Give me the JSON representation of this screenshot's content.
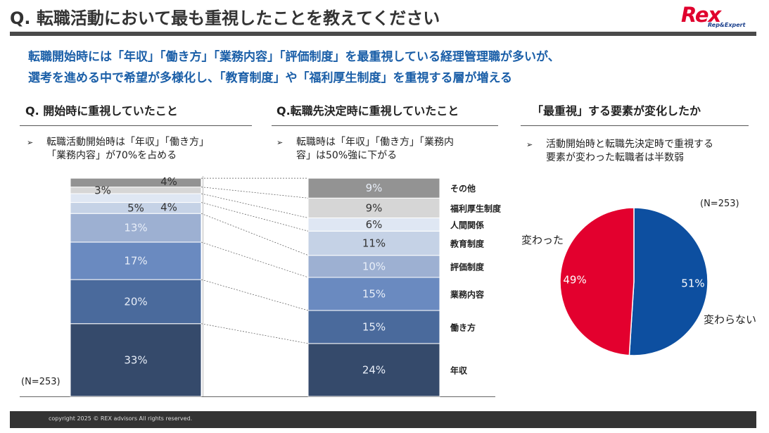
{
  "header": {
    "title": "Q. 転職活動において最も重視したことを教えてください",
    "logo_main": "Rex",
    "logo_sub": "Rep&Expert"
  },
  "headline": {
    "line1": "転職開始時には「年収」「働き方」「業務内容」「評価制度」を最重視している経理管理職が多いが、",
    "line2": "選考を進める中で希望が多様化し、「教育制度」や「福利厚生制度」を重視する層が増える"
  },
  "sections": {
    "start": {
      "title": "Q. 開始時に重視していたこと",
      "bullet_line1": "転職活動開始時は「年収」「働き方」",
      "bullet_line2": "「業務内容」が70%を占める",
      "n_label": "(N=253)"
    },
    "decision": {
      "title": "Q.転職先決定時に重視していたこと",
      "bullet_line1": "転職時は「年収」「働き方」「業務内",
      "bullet_line2": "容」は50%強に下がる"
    },
    "change": {
      "title": "「最重視」する要素が変化したか",
      "bullet_line1": "活動開始時と転職先決定時で重視する",
      "bullet_line2": "要素が変わった転職者は半数弱",
      "n_label": "(N=253)"
    }
  },
  "bullet_symbol": "➢",
  "chart_data": [
    {
      "type": "bar",
      "stacked": true,
      "title": "Q. 開始時に重視していたこと / Q.転職先決定時に重視していたこと",
      "categories": [
        "開始時",
        "転職先決定時"
      ],
      "unit": "%",
      "ylim": [
        0,
        100
      ],
      "series": [
        {
          "name": "年収",
          "values": [
            33,
            24
          ],
          "labels": [
            "33%",
            "24%"
          ],
          "color": "#354a6b"
        },
        {
          "name": "働き方",
          "values": [
            20,
            15
          ],
          "labels": [
            "20%",
            "15%"
          ],
          "color": "#4a6a9c"
        },
        {
          "name": "業務内容",
          "values": [
            17,
            15
          ],
          "labels": [
            "17%",
            "15%"
          ],
          "color": "#6a8ac0"
        },
        {
          "name": "評価制度",
          "values": [
            13,
            10
          ],
          "labels": [
            "13%",
            "10%"
          ],
          "color": "#9db0d2"
        },
        {
          "name": "教育制度",
          "values": [
            5,
            11
          ],
          "labels": [
            "5%",
            "11%"
          ],
          "color": "#c5d2e6"
        },
        {
          "name": "人間関係",
          "values": [
            4,
            6
          ],
          "labels": [
            "4%",
            "6%"
          ],
          "color": "#dfe7f3"
        },
        {
          "name": "福利厚生制度",
          "values": [
            3,
            9
          ],
          "labels": [
            "3%",
            "9%"
          ],
          "color": "#d6d6d6"
        },
        {
          "name": "その他",
          "values": [
            4,
            9
          ],
          "labels": [
            "4%",
            "9%"
          ],
          "color": "#939393"
        }
      ]
    },
    {
      "type": "pie",
      "title": "「最重視」する要素が変化したか",
      "categories": [
        "変わらない",
        "変わった"
      ],
      "values": [
        51,
        49
      ],
      "labels": [
        "51%",
        "49%"
      ],
      "colors": [
        "#0d4fa0",
        "#e3002e"
      ]
    }
  ],
  "footer": {
    "copyright": "copyright 2025 © REX advisors All rights reserved."
  }
}
